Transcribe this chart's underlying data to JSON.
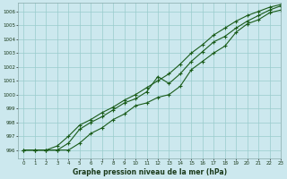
{
  "title": "",
  "xlabel": "Graphe pression niveau de la mer (hPa)",
  "background_color": "#cce8ee",
  "grid_color": "#99cccc",
  "line_color": "#1a5c1a",
  "xlim": [
    -0.5,
    23
  ],
  "ylim": [
    995.4,
    1006.6
  ],
  "yticks": [
    996,
    997,
    998,
    999,
    1000,
    1001,
    1002,
    1003,
    1004,
    1005,
    1006
  ],
  "xticks": [
    0,
    1,
    2,
    3,
    4,
    5,
    6,
    7,
    8,
    9,
    10,
    11,
    12,
    13,
    14,
    15,
    16,
    17,
    18,
    19,
    20,
    21,
    22,
    23
  ],
  "series1": [
    996.0,
    996.0,
    996.0,
    996.0,
    996.0,
    996.5,
    997.2,
    997.6,
    998.2,
    998.6,
    999.2,
    999.4,
    999.8,
    1000.0,
    1000.6,
    1001.8,
    1002.4,
    1003.0,
    1003.5,
    1004.5,
    1005.1,
    1005.4,
    1005.9,
    1006.1
  ],
  "series2": [
    996.0,
    996.0,
    996.0,
    996.0,
    996.5,
    997.5,
    998.0,
    998.4,
    998.9,
    999.4,
    999.7,
    1000.2,
    1001.3,
    1000.8,
    1001.5,
    1002.4,
    1003.1,
    1003.8,
    1004.2,
    1004.8,
    1005.3,
    1005.7,
    1006.1,
    1006.4
  ],
  "series3": [
    996.0,
    996.0,
    996.0,
    996.3,
    997.0,
    997.8,
    998.2,
    998.7,
    999.1,
    999.6,
    1000.0,
    1000.5,
    1001.0,
    1001.5,
    1002.2,
    1003.0,
    1003.6,
    1004.3,
    1004.8,
    1005.3,
    1005.7,
    1006.0,
    1006.3,
    1006.5
  ]
}
